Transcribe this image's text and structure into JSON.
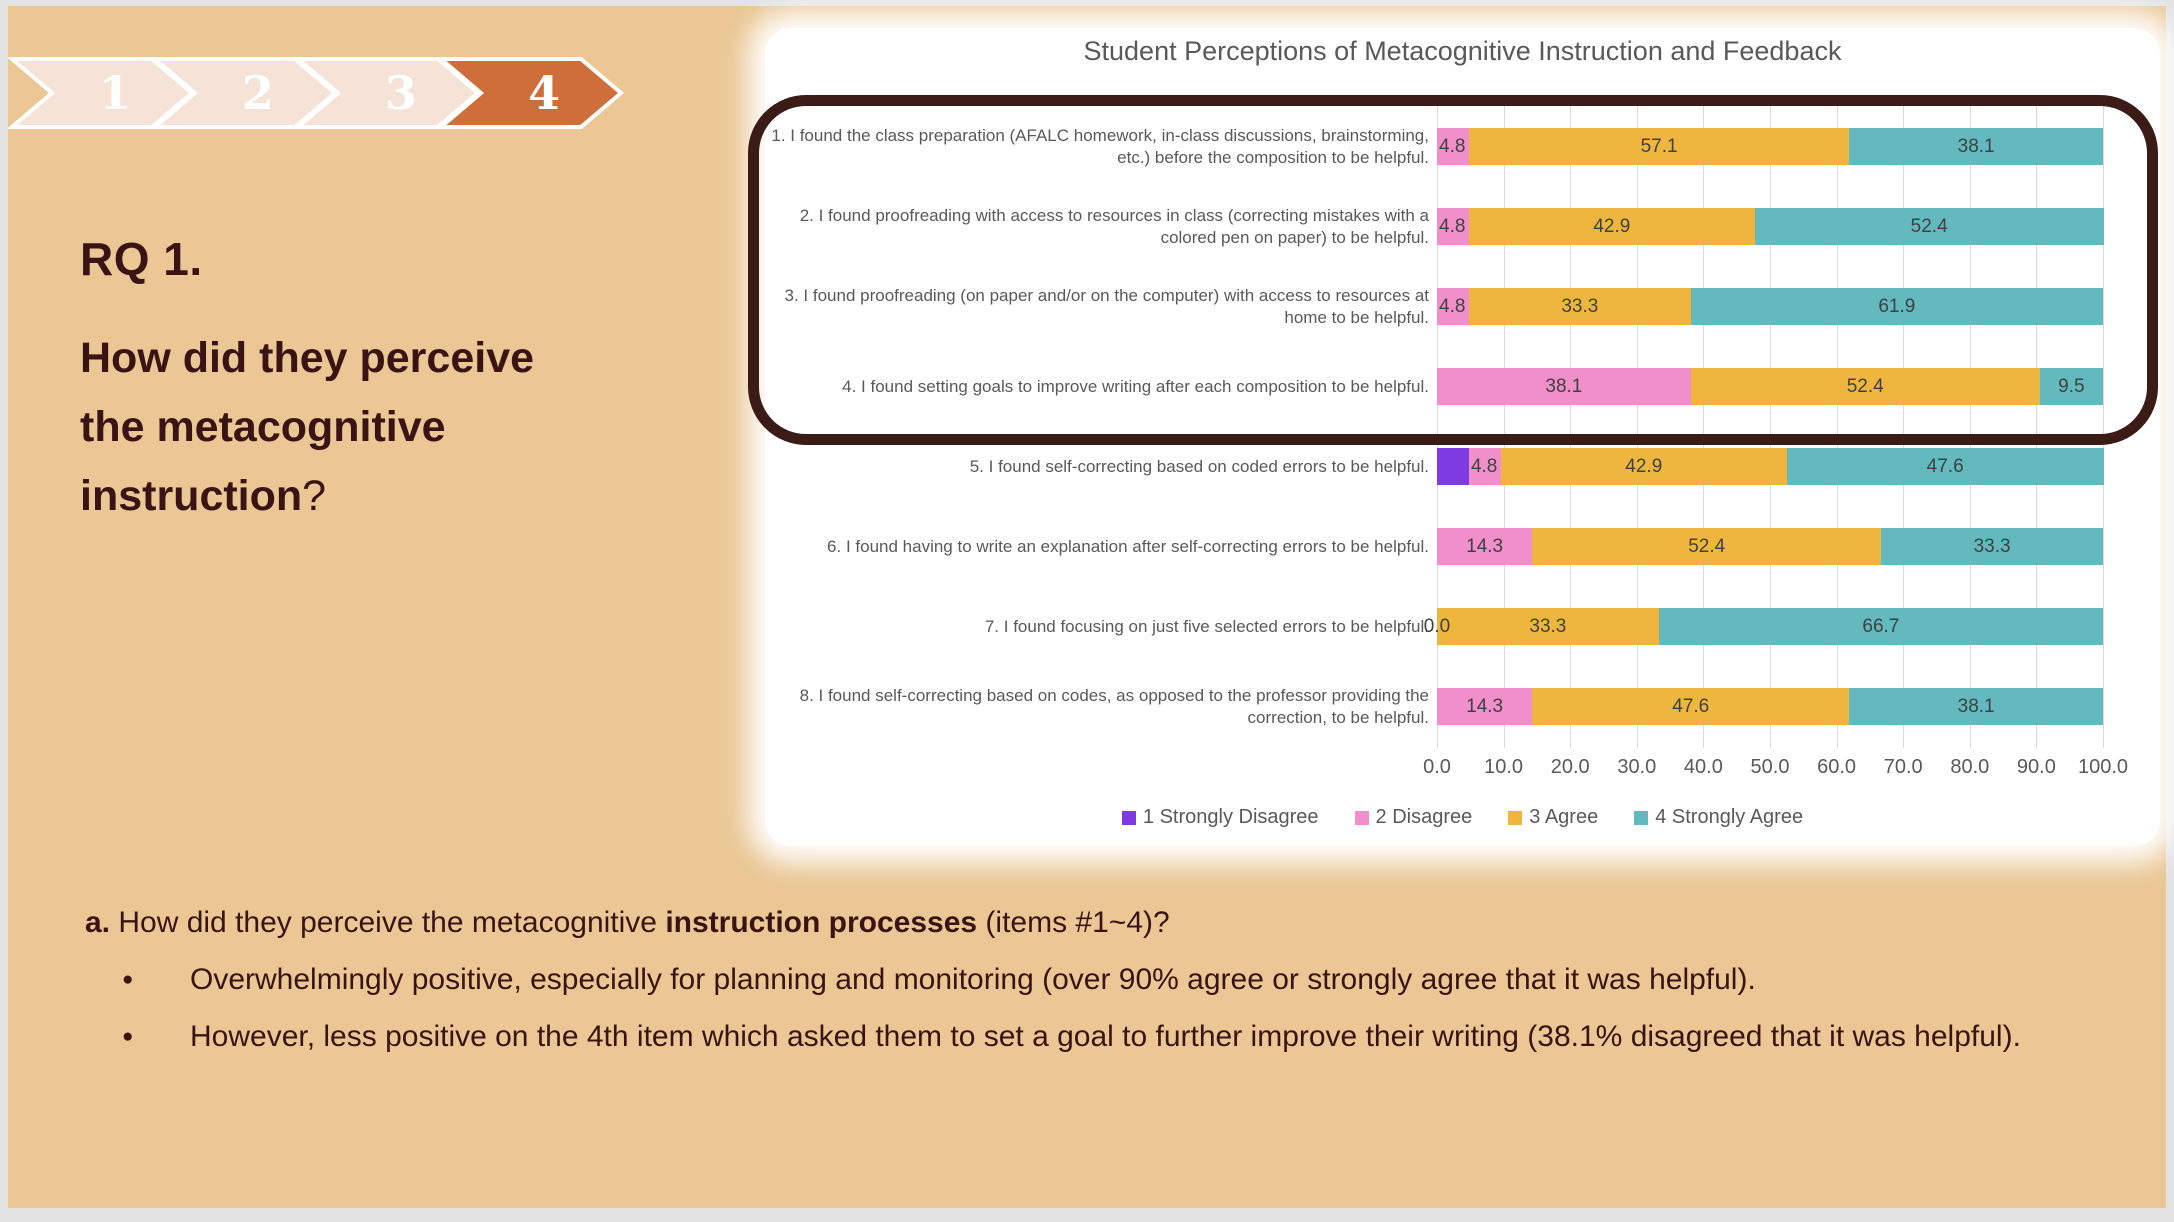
{
  "slide": {
    "progress": {
      "inactive_color": "#f6e3d8",
      "active_color": "#ce6e3a",
      "steps": [
        {
          "label": "1",
          "state": "inactive"
        },
        {
          "label": "2",
          "state": "inactive"
        },
        {
          "label": "3",
          "state": "inactive"
        },
        {
          "label": "4",
          "state": "active"
        }
      ]
    },
    "left_panel": {
      "rq_label": "RQ 1.",
      "question_lines": [
        "How did they perceive",
        "the metacognitive"
      ],
      "question_emphasis": "instruction",
      "question_suffix": "?"
    },
    "notes": {
      "line_a_segments": [
        {
          "text": "a. ",
          "bold": true
        },
        {
          "text": "How did they perceive the metacognitive ",
          "bold": false
        },
        {
          "text": "instruction processes",
          "bold": true
        },
        {
          "text": " (items #1~4)?",
          "bold": false
        }
      ],
      "bullet_glyph": "●",
      "bullets": [
        "Overwhelmingly positive, especially for planning and monitoring (over 90% agree or strongly agree that it was helpful).",
        "However, less positive on the 4th item which asked them to set a goal to further improve their writing (38.1% disagreed that it was helpful)."
      ]
    }
  },
  "chart_data": {
    "type": "bar",
    "orientation": "horizontal-stacked",
    "title": "Student Perceptions of Metacognitive Instruction and Feedback",
    "categories": [
      "1. I found the class preparation (AFALC homework, in-class discussions, brainstorming, etc.) before the composition to be helpful.",
      "2. I found proofreading with access to resources in class (correcting mistakes with a colored pen on paper) to be helpful.",
      "3. I found proofreading (on paper and/or on the computer) with access to resources at home to be helpful.",
      "4. I found setting goals to improve writing after each composition to be helpful.",
      "5. I found self-correcting based on coded errors to be helpful.",
      "6. I found having to write an explanation after self-correcting errors to be helpful.",
      "7. I found focusing on just five selected errors to be helpful.",
      "8. I found self-correcting based on codes, as opposed to the professor providing the correction, to be helpful."
    ],
    "series": [
      {
        "name": "1 Strongly Disagree",
        "color": "#7e3be2",
        "values": [
          0,
          0,
          0,
          0,
          4.8,
          0,
          0,
          0
        ]
      },
      {
        "name": "2 Disagree",
        "color": "#f08fc9",
        "values": [
          4.8,
          4.8,
          4.8,
          38.1,
          4.8,
          14.3,
          0,
          14.3
        ]
      },
      {
        "name": "3 Agree",
        "color": "#efb63f",
        "values": [
          57.1,
          42.9,
          33.3,
          52.4,
          42.9,
          52.4,
          33.3,
          47.6
        ]
      },
      {
        "name": "4 Strongly Agree",
        "color": "#63b9be",
        "values": [
          38.1,
          52.4,
          61.9,
          9.5,
          47.6,
          33.3,
          66.7,
          38.1
        ]
      }
    ],
    "suppressed_labels": [
      {
        "row": 4,
        "series": 0
      }
    ],
    "zero_labels": [
      {
        "row": 6,
        "value": 0.0
      }
    ],
    "xlim": [
      0,
      100
    ],
    "x_ticks": [
      "0.0",
      "10.0",
      "20.0",
      "30.0",
      "40.0",
      "50.0",
      "60.0",
      "70.0",
      "80.0",
      "90.0",
      "100.0"
    ],
    "grid": true,
    "legend_position": "bottom",
    "highlighted_items": "items 1-4 outlined"
  }
}
